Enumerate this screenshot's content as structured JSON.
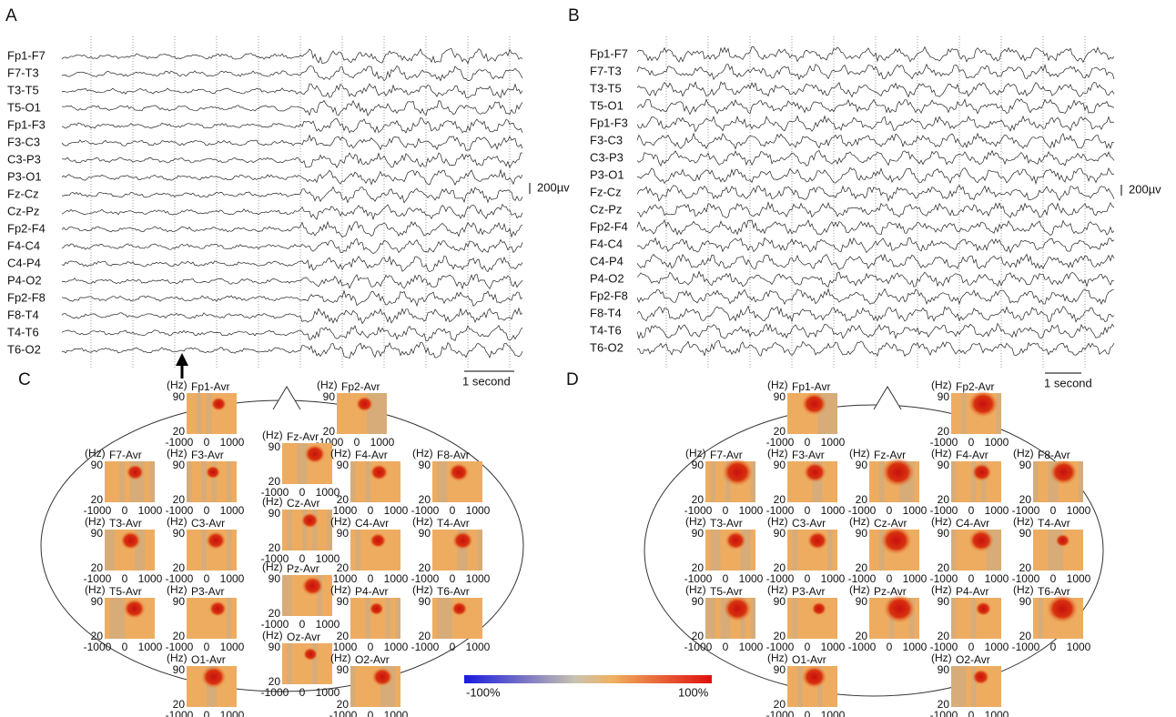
{
  "eeg_panels": [
    {
      "label": "A",
      "channels": [
        "Fp1-F7",
        "F7-T3",
        "T3-T5",
        "T5-O1",
        "Fp1-F3",
        "F3-C3",
        "C3-P3",
        "P3-O1",
        "Fz-Cz",
        "Cz-Pz",
        "Fp2-F4",
        "F4-C4",
        "C4-P4",
        "P4-O2",
        "Fp2-F8",
        "F8-T4",
        "T4-T6",
        "T6-O2"
      ],
      "amplitude_scale": "200µv",
      "time_scale": "1 second"
    },
    {
      "label": "B",
      "channels": [
        "Fp1-F7",
        "F7-T3",
        "T3-T5",
        "T5-O1",
        "Fp1-F3",
        "F3-C3",
        "C3-P3",
        "P3-O1",
        "Fz-Cz",
        "Cz-Pz",
        "Fp2-F4",
        "F4-C4",
        "C4-P4",
        "P4-O2",
        "Fp2-F8",
        "F8-T4",
        "T4-T6",
        "T6-O2"
      ],
      "amplitude_scale": "200µv",
      "time_scale": "1 second"
    }
  ],
  "tf_axes": {
    "unit": "(Hz)",
    "yticks": [
      "90",
      "20"
    ],
    "xticks": [
      "-1000",
      "0",
      "1000"
    ]
  },
  "tf_panels": [
    {
      "label": "C",
      "maps": [
        "Fp1-Avr",
        "Fp2-Avr",
        "F7-Avr",
        "F3-Avr",
        "Fz-Avr",
        "F4-Avr",
        "F8-Avr",
        "T3-Avr",
        "C3-Avr",
        "Cz-Avr",
        "C4-Avr",
        "T4-Avr",
        "T5-Avr",
        "P3-Avr",
        "Pz-Avr",
        "P4-Avr",
        "T6-Avr",
        "O1-Avr",
        "Oz-Avr",
        "O2-Avr"
      ]
    },
    {
      "label": "D",
      "maps": [
        "Fp1-Avr",
        "Fp2-Avr",
        "F7-Avr",
        "F3-Avr",
        "Fz-Avr",
        "F4-Avr",
        "F8-Avr",
        "T3-Avr",
        "C3-Avr",
        "Cz-Avr",
        "C4-Avr",
        "T4-Avr",
        "T5-Avr",
        "P3-Avr",
        "Pz-Avr",
        "P4-Avr",
        "T6-Avr",
        "O1-Avr",
        "O2-Avr"
      ]
    }
  ],
  "colorbar": {
    "min_label": "-100%",
    "max_label": "100%"
  }
}
